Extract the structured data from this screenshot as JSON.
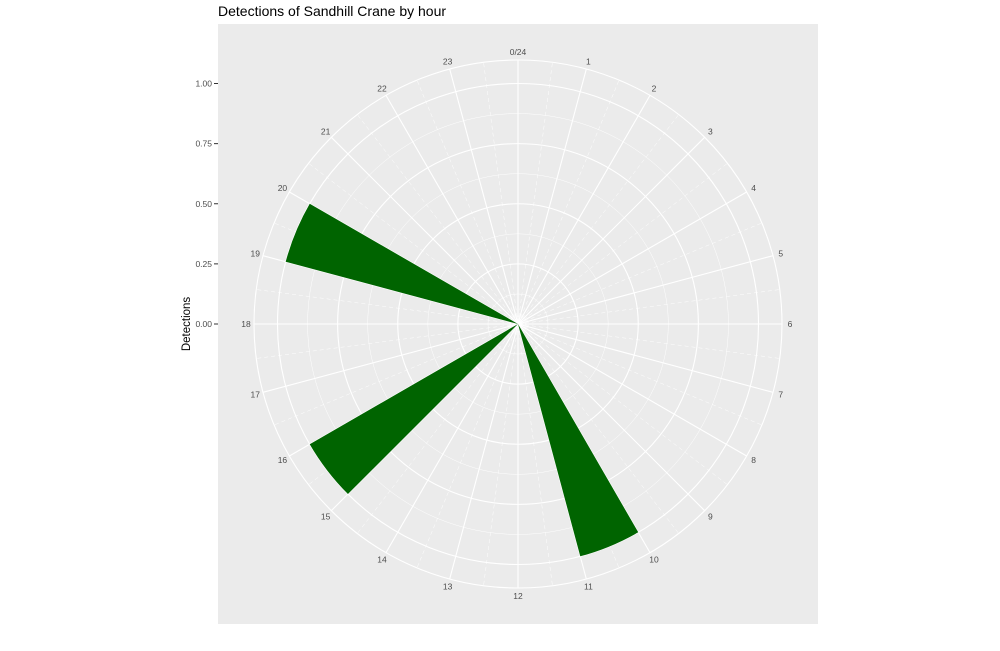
{
  "chart_data": {
    "type": "bar",
    "coord": "polar",
    "title": "Detections of Sandhill Crane by hour",
    "ylabel": "Detections",
    "xlabel": "",
    "ylim": [
      0,
      1.1
    ],
    "y_ticks": [
      "0.00",
      "0.25",
      "0.50",
      "0.75",
      "1.00"
    ],
    "hour_labels": [
      "0/24",
      "1",
      "2",
      "3",
      "4",
      "5",
      "6",
      "7",
      "8",
      "9",
      "10",
      "11",
      "12",
      "13",
      "14",
      "15",
      "16",
      "17",
      "18",
      "19",
      "20",
      "21",
      "22",
      "23"
    ],
    "series": [
      {
        "hours": [
          10.5,
          15.5,
          19.5
        ],
        "values": [
          1.0,
          1.0,
          1.0
        ],
        "color": "#006400"
      }
    ],
    "panel_background": "#ebebeb",
    "grid_color": "#ffffff",
    "grid": true
  }
}
